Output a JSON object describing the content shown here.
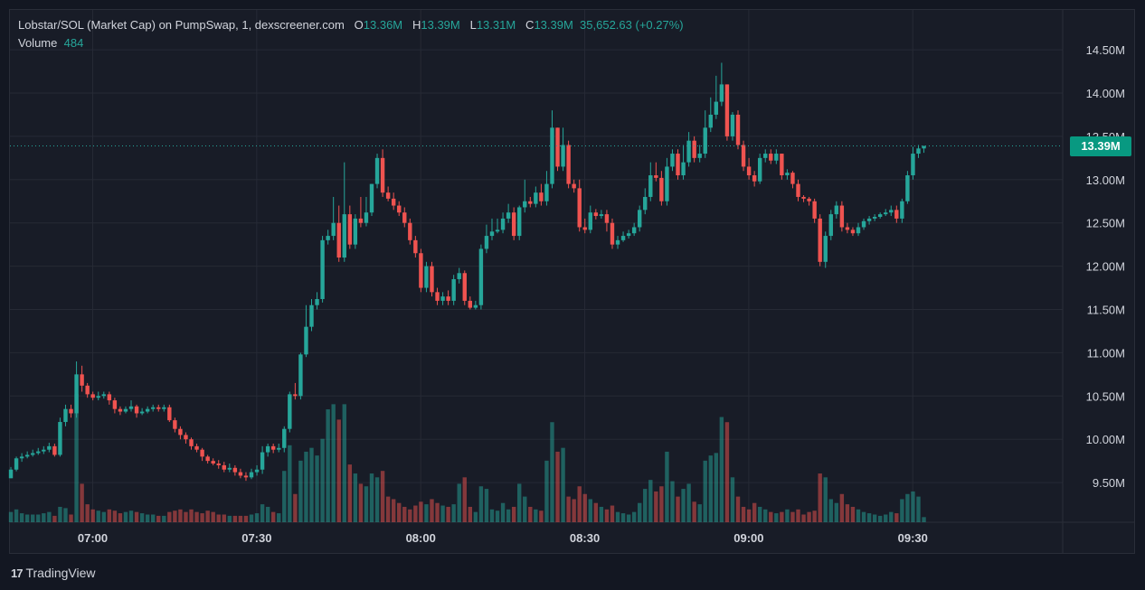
{
  "header": {
    "title": "Lobstar/SOL (Market Cap) on PumpSwap, 1, dexscreener.com",
    "open_key": "O",
    "open": "13.36M",
    "high_key": "H",
    "high": "13.39M",
    "low_key": "L",
    "low": "13.31M",
    "close_key": "C",
    "close": "13.39M",
    "change": "35,652.63 (+0.27%)",
    "volume_label": "Volume",
    "volume_value": "484"
  },
  "price_badge": "13.39M",
  "brand": {
    "logo_text": "17",
    "name": "TradingView"
  },
  "colors": {
    "up": "#26a69a",
    "down": "#ef5350",
    "grid": "#262a35",
    "badge": "#089981"
  },
  "chart_data": {
    "type": "candlestick",
    "x_axis_ticks": [
      {
        "label": "07:00",
        "minute": 0
      },
      {
        "label": "07:30",
        "minute": 30
      },
      {
        "label": "08:00",
        "minute": 60
      },
      {
        "label": "08:30",
        "minute": 90
      },
      {
        "label": "09:00",
        "minute": 120
      },
      {
        "label": "09:30",
        "minute": 150
      }
    ],
    "y_axis_ticks": [
      "14.50M",
      "14.00M",
      "13.50M",
      "13.00M",
      "12.50M",
      "12.00M",
      "11.50M",
      "11.00M",
      "10.50M",
      "10.00M",
      "9.50M"
    ],
    "y_tick_values": [
      14.5,
      14.0,
      13.5,
      13.0,
      12.5,
      12.0,
      11.5,
      11.0,
      10.5,
      10.0,
      9.5
    ],
    "ylim": [
      9.06,
      14.75
    ],
    "unit": "M",
    "last_price": 13.39,
    "first_candle_minute": -15,
    "candles": [
      [
        9.55,
        9.65,
        9.55,
        9.68,
        8
      ],
      [
        9.65,
        9.78,
        9.63,
        9.8,
        10
      ],
      [
        9.78,
        9.8,
        9.74,
        9.84,
        7
      ],
      [
        9.8,
        9.82,
        9.78,
        9.86,
        6
      ],
      [
        9.82,
        9.84,
        9.8,
        9.88,
        6
      ],
      [
        9.84,
        9.86,
        9.82,
        9.9,
        6
      ],
      [
        9.86,
        9.88,
        9.83,
        9.92,
        7
      ],
      [
        9.88,
        9.92,
        9.85,
        9.96,
        8
      ],
      [
        9.92,
        9.82,
        9.8,
        9.95,
        5
      ],
      [
        9.82,
        10.2,
        9.8,
        10.25,
        12
      ],
      [
        10.2,
        10.35,
        10.15,
        10.4,
        11
      ],
      [
        10.35,
        10.3,
        10.25,
        10.4,
        6
      ],
      [
        10.3,
        10.75,
        10.25,
        10.9,
        100
      ],
      [
        10.75,
        10.62,
        10.55,
        10.85,
        30
      ],
      [
        10.62,
        10.52,
        10.48,
        10.65,
        14
      ],
      [
        10.52,
        10.48,
        10.45,
        10.55,
        10
      ],
      [
        10.48,
        10.5,
        10.45,
        10.55,
        9
      ],
      [
        10.5,
        10.52,
        10.47,
        10.55,
        8
      ],
      [
        10.52,
        10.45,
        10.4,
        10.55,
        10
      ],
      [
        10.45,
        10.35,
        10.3,
        10.48,
        9
      ],
      [
        10.35,
        10.32,
        10.28,
        10.38,
        7
      ],
      [
        10.32,
        10.35,
        10.3,
        10.38,
        8
      ],
      [
        10.35,
        10.38,
        10.32,
        10.45,
        9
      ],
      [
        10.38,
        10.3,
        10.25,
        10.4,
        8
      ],
      [
        10.3,
        10.32,
        10.28,
        10.36,
        7
      ],
      [
        10.32,
        10.35,
        10.3,
        10.38,
        6
      ],
      [
        10.35,
        10.37,
        10.32,
        10.4,
        6
      ],
      [
        10.37,
        10.35,
        10.32,
        10.4,
        5
      ],
      [
        10.35,
        10.37,
        10.32,
        10.4,
        5
      ],
      [
        10.37,
        10.22,
        10.2,
        10.4,
        8
      ],
      [
        10.22,
        10.12,
        10.08,
        10.25,
        9
      ],
      [
        10.12,
        10.05,
        10.0,
        10.15,
        10
      ],
      [
        10.05,
        10.0,
        9.95,
        10.08,
        8
      ],
      [
        10.0,
        9.92,
        9.88,
        10.02,
        10
      ],
      [
        9.92,
        9.88,
        9.85,
        9.95,
        8
      ],
      [
        9.88,
        9.8,
        9.75,
        9.9,
        7
      ],
      [
        9.8,
        9.75,
        9.72,
        9.82,
        9
      ],
      [
        9.75,
        9.72,
        9.7,
        9.78,
        8
      ],
      [
        9.72,
        9.7,
        9.66,
        9.76,
        6
      ],
      [
        9.7,
        9.65,
        9.62,
        9.74,
        6
      ],
      [
        9.65,
        9.67,
        9.62,
        9.72,
        5
      ],
      [
        9.67,
        9.62,
        9.58,
        9.7,
        5
      ],
      [
        9.62,
        9.58,
        9.55,
        9.66,
        5
      ],
      [
        9.58,
        9.56,
        9.52,
        9.62,
        5
      ],
      [
        9.56,
        9.62,
        9.54,
        9.66,
        6
      ],
      [
        9.62,
        9.65,
        9.58,
        9.7,
        7
      ],
      [
        9.65,
        9.85,
        9.6,
        9.92,
        14
      ],
      [
        9.85,
        9.92,
        9.8,
        9.95,
        12
      ],
      [
        9.92,
        9.88,
        9.84,
        9.95,
        8
      ],
      [
        9.88,
        9.9,
        9.85,
        9.95,
        7
      ],
      [
        9.9,
        10.12,
        9.85,
        10.15,
        40
      ],
      [
        10.12,
        10.52,
        10.08,
        10.55,
        60
      ],
      [
        10.52,
        10.5,
        10.46,
        10.65,
        22
      ],
      [
        10.5,
        10.98,
        10.46,
        11.0,
        48
      ],
      [
        10.98,
        11.3,
        10.95,
        11.55,
        55
      ],
      [
        11.3,
        11.55,
        11.25,
        11.62,
        58
      ],
      [
        11.55,
        11.62,
        11.5,
        11.7,
        52
      ],
      [
        11.62,
        12.3,
        11.58,
        12.35,
        65
      ],
      [
        12.3,
        12.35,
        12.25,
        12.42,
        88
      ],
      [
        12.35,
        12.5,
        12.3,
        12.8,
        92
      ],
      [
        12.5,
        12.1,
        12.05,
        12.7,
        80
      ],
      [
        12.1,
        12.6,
        12.05,
        13.2,
        92
      ],
      [
        12.6,
        12.25,
        12.2,
        12.7,
        45
      ],
      [
        12.25,
        12.55,
        12.2,
        12.6,
        38
      ],
      [
        12.55,
        12.5,
        12.45,
        12.8,
        30
      ],
      [
        12.5,
        12.62,
        12.46,
        12.8,
        28
      ],
      [
        12.62,
        12.95,
        12.58,
        12.95,
        38
      ],
      [
        12.95,
        13.25,
        12.9,
        13.3,
        35
      ],
      [
        13.25,
        12.85,
        12.8,
        13.35,
        40
      ],
      [
        12.85,
        12.78,
        12.75,
        12.92,
        20
      ],
      [
        12.78,
        12.7,
        12.65,
        12.85,
        18
      ],
      [
        12.7,
        12.62,
        12.58,
        12.75,
        15
      ],
      [
        12.62,
        12.5,
        12.45,
        12.68,
        12
      ],
      [
        12.5,
        12.3,
        12.25,
        12.55,
        10
      ],
      [
        12.3,
        12.15,
        12.1,
        12.35,
        13
      ],
      [
        12.15,
        11.75,
        11.7,
        12.2,
        16
      ],
      [
        11.75,
        12.0,
        11.7,
        12.05,
        14
      ],
      [
        12.0,
        11.7,
        11.65,
        12.05,
        18
      ],
      [
        11.7,
        11.6,
        11.55,
        11.75,
        15
      ],
      [
        11.6,
        11.65,
        11.55,
        11.7,
        13
      ],
      [
        11.65,
        11.6,
        11.55,
        11.72,
        12
      ],
      [
        11.6,
        11.85,
        11.55,
        11.9,
        14
      ],
      [
        11.85,
        11.92,
        11.8,
        11.98,
        30
      ],
      [
        11.92,
        11.6,
        11.55,
        11.95,
        35
      ],
      [
        11.6,
        11.52,
        11.5,
        11.65,
        12
      ],
      [
        11.52,
        11.55,
        11.5,
        11.6,
        8
      ],
      [
        11.55,
        12.2,
        11.5,
        12.25,
        28
      ],
      [
        12.2,
        12.35,
        12.15,
        12.48,
        26
      ],
      [
        12.35,
        12.4,
        12.3,
        12.55,
        10
      ],
      [
        12.4,
        12.42,
        12.38,
        12.55,
        9
      ],
      [
        12.42,
        12.55,
        12.38,
        12.62,
        15
      ],
      [
        12.55,
        12.62,
        12.5,
        12.72,
        10
      ],
      [
        12.62,
        12.35,
        12.3,
        12.68,
        12
      ],
      [
        12.35,
        12.68,
        12.3,
        12.7,
        30
      ],
      [
        12.68,
        12.75,
        12.62,
        13.0,
        20
      ],
      [
        12.75,
        12.72,
        12.68,
        12.8,
        12
      ],
      [
        12.72,
        12.85,
        12.68,
        12.92,
        10
      ],
      [
        12.85,
        12.75,
        12.7,
        12.95,
        9
      ],
      [
        12.75,
        12.95,
        12.7,
        13.1,
        48
      ],
      [
        12.95,
        13.6,
        12.9,
        13.8,
        78
      ],
      [
        13.6,
        13.15,
        13.1,
        13.6,
        55
      ],
      [
        13.15,
        13.4,
        13.1,
        13.6,
        58
      ],
      [
        13.4,
        12.95,
        12.9,
        13.45,
        20
      ],
      [
        12.95,
        12.9,
        12.85,
        13.0,
        18
      ],
      [
        12.9,
        12.45,
        12.4,
        13.0,
        28
      ],
      [
        12.45,
        12.42,
        12.38,
        12.55,
        22
      ],
      [
        12.42,
        12.62,
        12.38,
        12.7,
        18
      ],
      [
        12.62,
        12.58,
        12.54,
        12.66,
        15
      ],
      [
        12.58,
        12.6,
        12.55,
        12.65,
        12
      ],
      [
        12.6,
        12.5,
        12.4,
        12.65,
        10
      ],
      [
        12.5,
        12.25,
        12.2,
        12.55,
        13
      ],
      [
        12.25,
        12.3,
        12.2,
        12.35,
        8
      ],
      [
        12.3,
        12.35,
        12.28,
        12.4,
        7
      ],
      [
        12.35,
        12.38,
        12.32,
        12.42,
        6
      ],
      [
        12.38,
        12.45,
        12.35,
        12.5,
        8
      ],
      [
        12.45,
        12.65,
        12.4,
        12.7,
        15
      ],
      [
        12.65,
        12.8,
        12.6,
        12.9,
        26
      ],
      [
        12.8,
        13.05,
        12.75,
        13.2,
        33
      ],
      [
        13.05,
        13.02,
        12.98,
        13.2,
        24
      ],
      [
        13.02,
        12.75,
        12.7,
        13.1,
        28
      ],
      [
        12.75,
        13.15,
        12.7,
        13.25,
        55
      ],
      [
        13.15,
        13.3,
        13.1,
        13.35,
        32
      ],
      [
        13.3,
        13.05,
        13.0,
        13.35,
        20
      ],
      [
        13.05,
        13.2,
        13.0,
        13.4,
        26
      ],
      [
        13.2,
        13.45,
        13.15,
        13.55,
        30
      ],
      [
        13.45,
        13.25,
        13.2,
        13.5,
        16
      ],
      [
        13.25,
        13.3,
        13.2,
        13.4,
        14
      ],
      [
        13.3,
        13.6,
        13.25,
        13.8,
        48
      ],
      [
        13.6,
        13.75,
        13.55,
        13.95,
        52
      ],
      [
        13.75,
        13.9,
        13.7,
        14.2,
        54
      ],
      [
        13.9,
        14.1,
        13.85,
        14.35,
        82
      ],
      [
        14.1,
        13.5,
        13.45,
        14.1,
        78
      ],
      [
        13.5,
        13.75,
        13.45,
        13.78,
        35
      ],
      [
        13.75,
        13.4,
        13.35,
        13.8,
        20
      ],
      [
        13.4,
        13.15,
        13.1,
        13.45,
        12
      ],
      [
        13.15,
        13.05,
        13.0,
        13.25,
        10
      ],
      [
        13.05,
        12.98,
        12.92,
        13.1,
        15
      ],
      [
        12.98,
        13.25,
        12.95,
        13.3,
        12
      ],
      [
        13.25,
        13.3,
        13.2,
        13.35,
        10
      ],
      [
        13.3,
        13.22,
        13.18,
        13.35,
        8
      ],
      [
        13.22,
        13.3,
        13.18,
        13.35,
        7
      ],
      [
        13.3,
        13.05,
        13.0,
        13.3,
        8
      ],
      [
        13.05,
        13.08,
        13.0,
        13.12,
        10
      ],
      [
        13.08,
        12.95,
        12.9,
        13.1,
        8
      ],
      [
        12.95,
        12.8,
        12.75,
        13.0,
        10
      ],
      [
        12.8,
        12.78,
        12.74,
        12.82,
        6
      ],
      [
        12.78,
        12.75,
        12.7,
        12.8,
        8
      ],
      [
        12.75,
        12.55,
        12.5,
        12.78,
        9
      ],
      [
        12.55,
        12.05,
        12.0,
        12.6,
        38
      ],
      [
        12.05,
        12.35,
        11.98,
        12.4,
        35
      ],
      [
        12.35,
        12.6,
        12.3,
        12.65,
        18
      ],
      [
        12.6,
        12.7,
        12.55,
        12.75,
        15
      ],
      [
        12.7,
        12.45,
        12.4,
        12.75,
        22
      ],
      [
        12.45,
        12.42,
        12.38,
        12.5,
        14
      ],
      [
        12.42,
        12.38,
        12.35,
        12.45,
        12
      ],
      [
        12.38,
        12.45,
        12.35,
        12.5,
        10
      ],
      [
        12.45,
        12.52,
        12.42,
        12.55,
        8
      ],
      [
        12.52,
        12.55,
        12.48,
        12.58,
        7
      ],
      [
        12.55,
        12.57,
        12.52,
        12.6,
        6
      ],
      [
        12.57,
        12.6,
        12.55,
        12.62,
        5
      ],
      [
        12.6,
        12.62,
        12.58,
        12.66,
        6
      ],
      [
        12.62,
        12.65,
        12.58,
        12.7,
        8
      ],
      [
        12.65,
        12.55,
        12.5,
        12.7,
        7
      ],
      [
        12.55,
        12.75,
        12.5,
        12.78,
        18
      ],
      [
        12.75,
        13.05,
        12.72,
        13.1,
        22
      ],
      [
        13.05,
        13.3,
        13.0,
        13.38,
        24
      ],
      [
        13.3,
        13.36,
        13.25,
        13.4,
        20
      ],
      [
        13.36,
        13.39,
        13.31,
        13.39,
        4
      ]
    ]
  }
}
